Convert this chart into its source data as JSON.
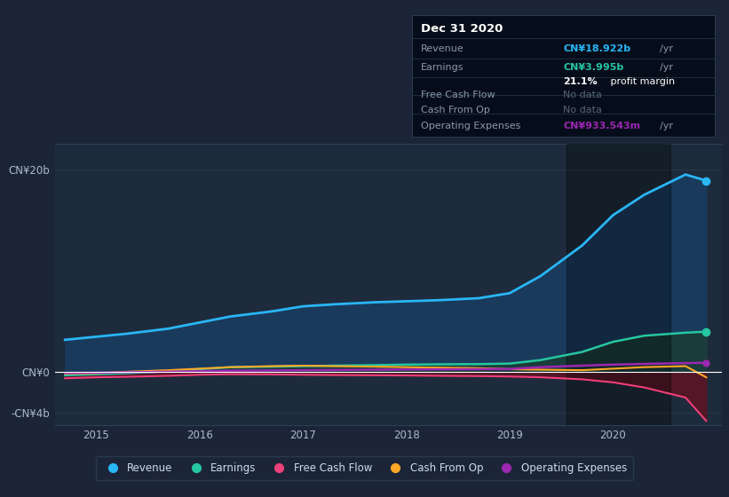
{
  "background_color": "#1c2537",
  "chart_bg_color": "#1e2b3c",
  "grid_color": "#2a3f55",
  "text_color": "#aabbcc",
  "zero_line_color": "#ffffff",
  "xlabel_years": [
    "2015",
    "2016",
    "2017",
    "2018",
    "2019",
    "2020"
  ],
  "years": [
    2014.7,
    2015.0,
    2015.3,
    2015.7,
    2016.0,
    2016.3,
    2016.7,
    2017.0,
    2017.3,
    2017.7,
    2018.0,
    2018.3,
    2018.7,
    2019.0,
    2019.3,
    2019.7,
    2020.0,
    2020.3,
    2020.7,
    2020.9
  ],
  "revenue": [
    3.2,
    3.5,
    3.8,
    4.3,
    4.9,
    5.5,
    6.0,
    6.5,
    6.7,
    6.9,
    7.0,
    7.1,
    7.3,
    7.8,
    9.5,
    12.5,
    15.5,
    17.5,
    19.5,
    18.9
  ],
  "earnings": [
    -0.3,
    -0.2,
    -0.1,
    0.1,
    0.3,
    0.5,
    0.55,
    0.6,
    0.65,
    0.7,
    0.75,
    0.78,
    0.8,
    0.85,
    1.2,
    2.0,
    3.0,
    3.6,
    3.9,
    4.0
  ],
  "free_cash_flow": [
    -0.6,
    -0.5,
    -0.45,
    -0.35,
    -0.25,
    -0.2,
    -0.22,
    -0.25,
    -0.28,
    -0.3,
    -0.32,
    -0.35,
    -0.38,
    -0.42,
    -0.5,
    -0.7,
    -1.0,
    -1.5,
    -2.5,
    -4.8
  ],
  "cash_from_op": [
    -0.15,
    -0.1,
    0.05,
    0.2,
    0.35,
    0.5,
    0.6,
    0.65,
    0.6,
    0.55,
    0.5,
    0.45,
    0.4,
    0.3,
    0.25,
    0.2,
    0.35,
    0.5,
    0.6,
    -0.5
  ],
  "operating_expenses": [
    -0.08,
    -0.05,
    0.0,
    0.05,
    0.1,
    0.15,
    0.18,
    0.2,
    0.22,
    0.25,
    0.27,
    0.28,
    0.3,
    0.32,
    0.5,
    0.65,
    0.75,
    0.82,
    0.9,
    0.93
  ],
  "revenue_color": "#29b6f6",
  "revenue_fill": "#1a3a5c",
  "earnings_color": "#26c6a0",
  "earnings_fill": "#1a3d3a",
  "fcf_neg_fill": "#5a1525",
  "free_cash_flow_color": "#ec407a",
  "cash_from_op_color": "#ffa726",
  "operating_expenses_color": "#9c27b0",
  "info_box": {
    "title": "Dec 31 2020",
    "revenue_label": "Revenue",
    "revenue_value": "CN¥18.922b",
    "revenue_unit": "/yr",
    "earnings_label": "Earnings",
    "earnings_value": "CN¥3.995b",
    "earnings_unit": "/yr",
    "profit_margin": "21.1%",
    "profit_margin_suffix": " profit margin",
    "fcf_label": "Free Cash Flow",
    "fcf_value": "No data",
    "cashop_label": "Cash From Op",
    "cashop_value": "No data",
    "opex_label": "Operating Expenses",
    "opex_value": "CN¥933.543m",
    "opex_unit": "/yr"
  },
  "legend_items": [
    "Revenue",
    "Earnings",
    "Free Cash Flow",
    "Cash From Op",
    "Operating Expenses"
  ],
  "legend_colors": [
    "#29b6f6",
    "#26c6a0",
    "#ec407a",
    "#ffa726",
    "#9c27b0"
  ]
}
